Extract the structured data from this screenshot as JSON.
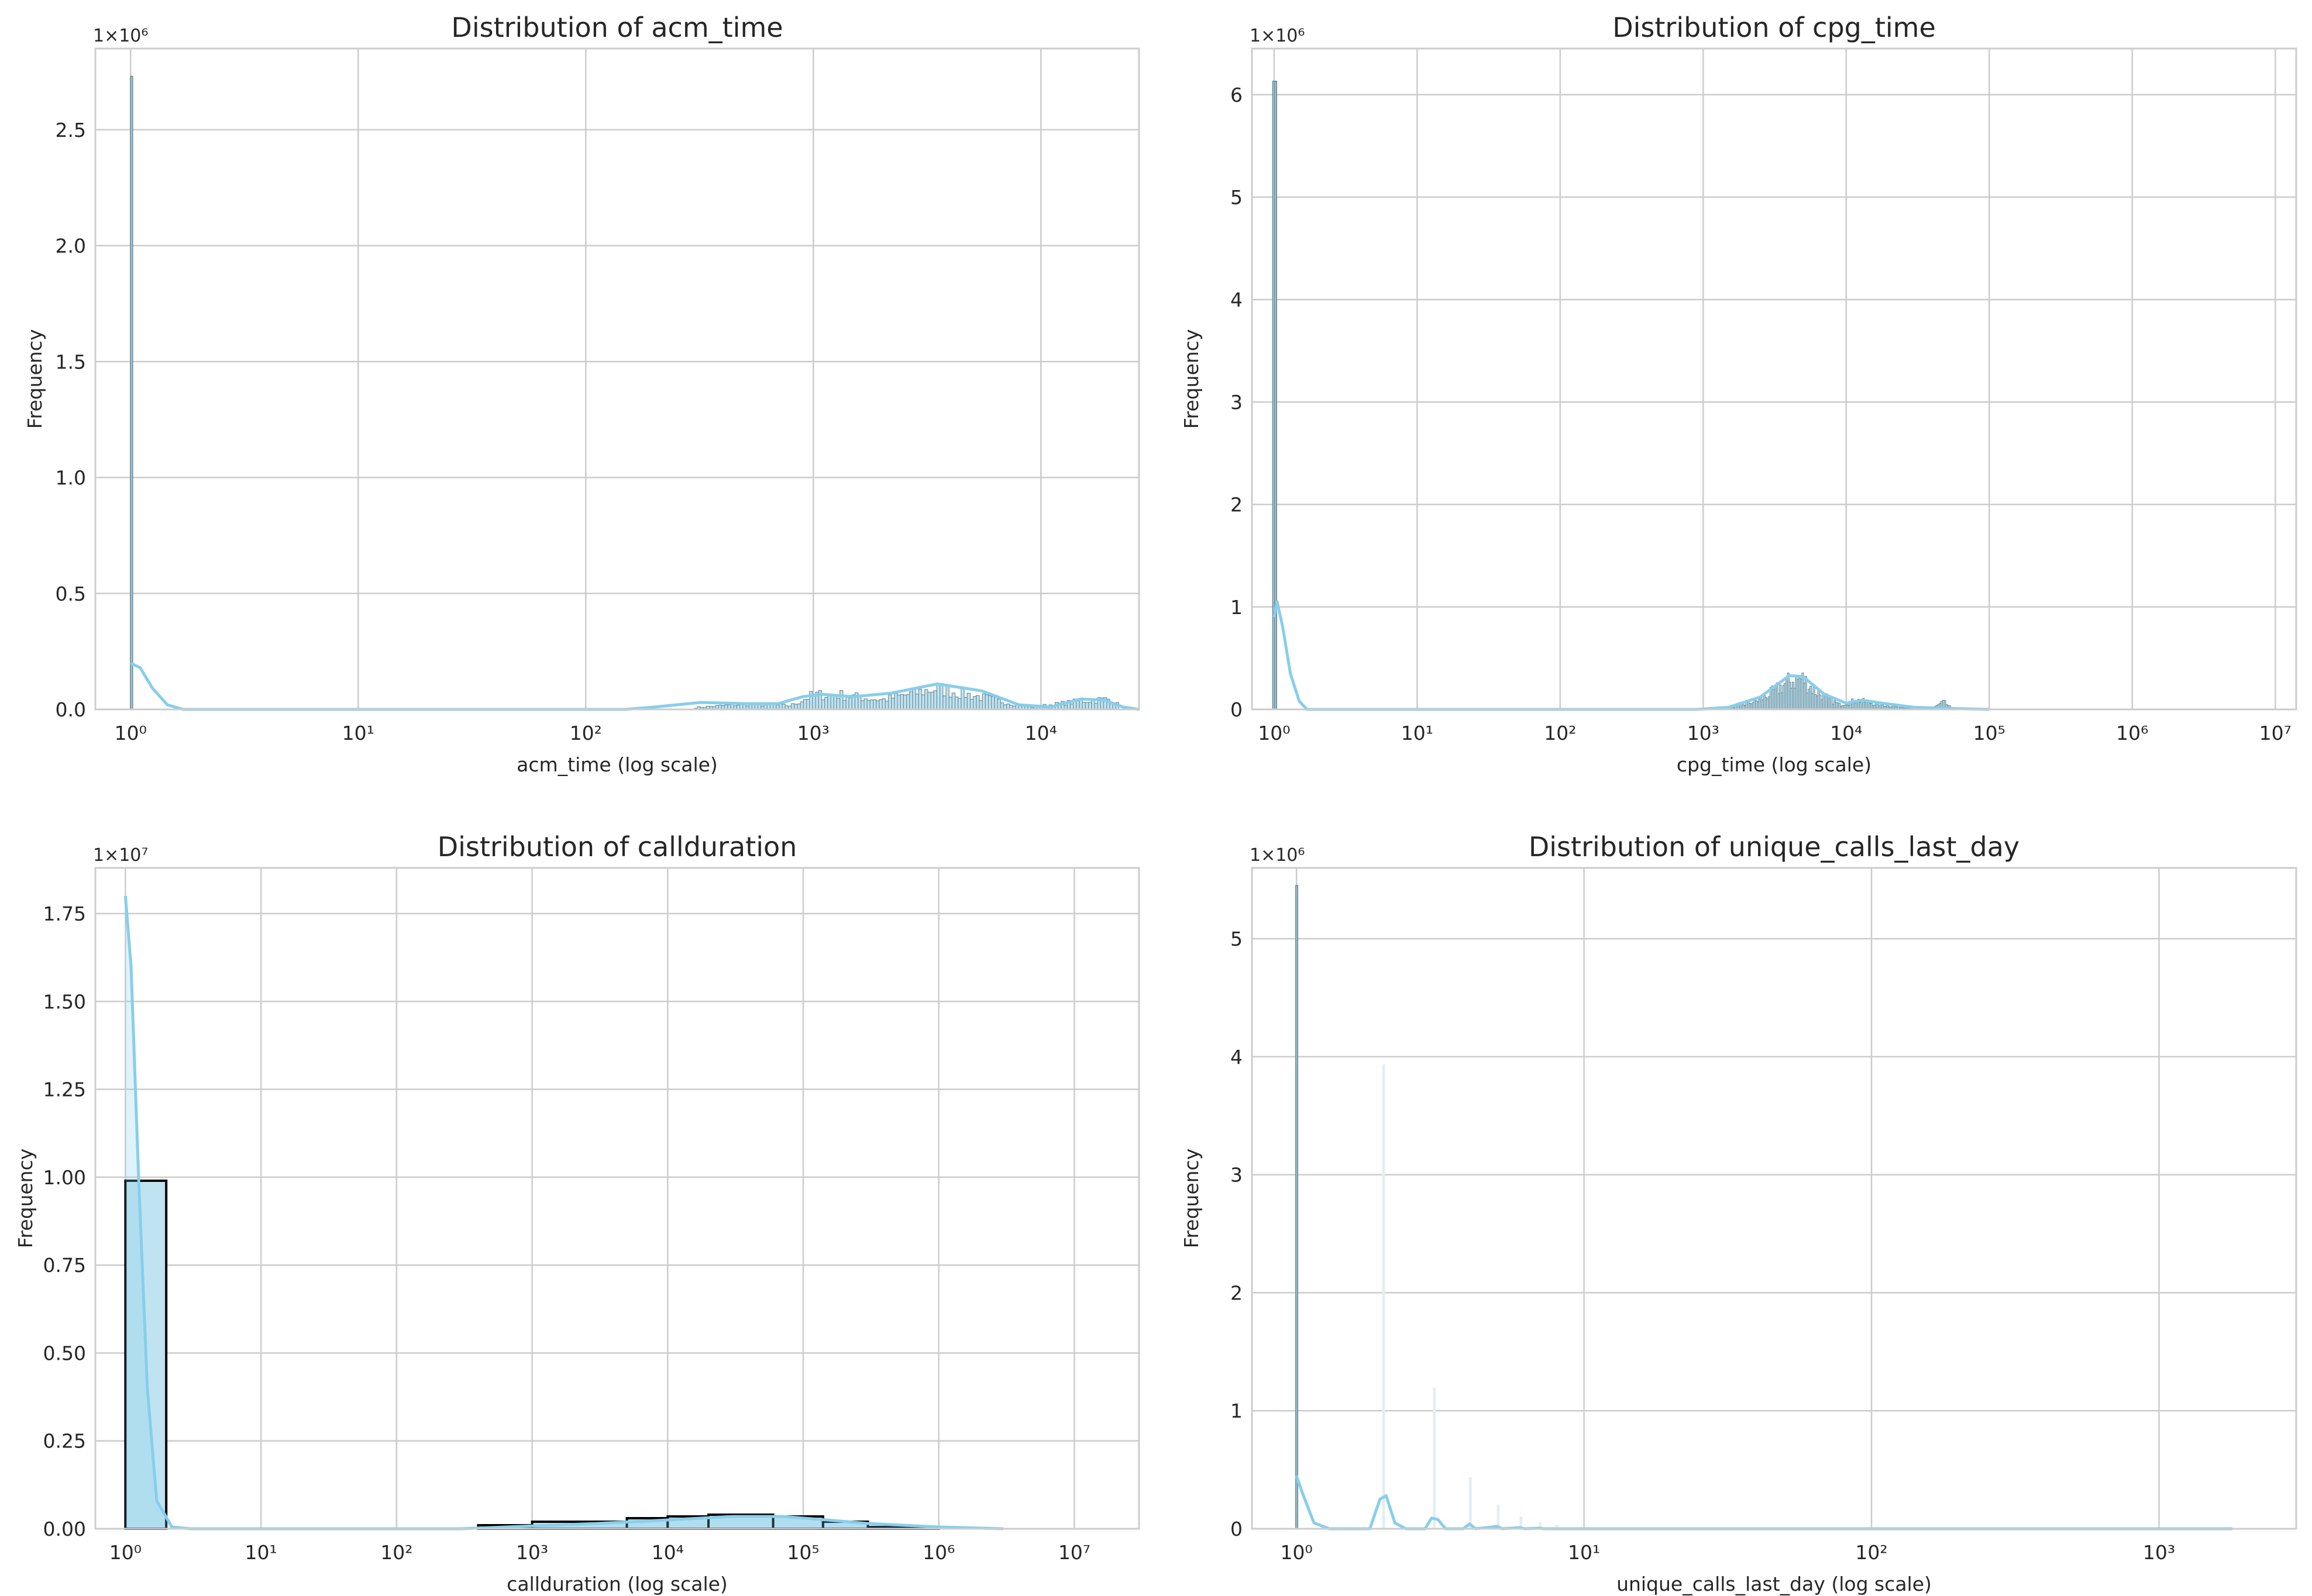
{
  "colors": {
    "series": "#87ceeb",
    "grid": "#cccccc",
    "frame": "#cccccc",
    "text": "#262626"
  },
  "chart_data": [
    {
      "type": "bar",
      "title": "Distribution of acm_time",
      "xlabel": "acm_time (log scale)",
      "ylabel": "Frequency",
      "xscale": "log",
      "xlim": [
        0.7,
        27000
      ],
      "ylim": [
        0,
        2850000
      ],
      "multiplier_label": "1×10⁶",
      "yticks": [
        0,
        500000,
        1000000,
        1500000,
        2000000,
        2500000
      ],
      "ytick_labels": [
        "0.0",
        "0.5",
        "1.0",
        "1.5",
        "2.0",
        "2.5"
      ],
      "xticks": [
        1,
        10,
        100,
        1000,
        10000
      ],
      "xtick_labels": [
        "10⁰",
        "10¹",
        "10²",
        "10³",
        "10⁴"
      ],
      "grid": true,
      "histogram": {
        "bins": [
          [
            1.0,
            1.02,
            2730000
          ]
        ],
        "range": [
          300,
          22000
        ],
        "profile": [
          [
            300,
            8000
          ],
          [
            500,
            25000
          ],
          [
            800,
            18000
          ],
          [
            1000,
            70000
          ],
          [
            1300,
            70000
          ],
          [
            2000,
            45000
          ],
          [
            3500,
            100000
          ],
          [
            6000,
            50000
          ],
          [
            9000,
            10000
          ],
          [
            15000,
            40000
          ],
          [
            20000,
            50000
          ],
          [
            22000,
            20000
          ]
        ]
      },
      "kde": [
        [
          1.0,
          200000
        ],
        [
          1.1,
          180000
        ],
        [
          1.25,
          90000
        ],
        [
          1.45,
          20000
        ],
        [
          1.7,
          0
        ],
        [
          150,
          0
        ],
        [
          200,
          10000
        ],
        [
          320,
          30000
        ],
        [
          500,
          25000
        ],
        [
          700,
          25000
        ],
        [
          900,
          55000
        ],
        [
          1100,
          65000
        ],
        [
          1500,
          55000
        ],
        [
          2200,
          70000
        ],
        [
          3500,
          110000
        ],
        [
          5500,
          80000
        ],
        [
          8000,
          20000
        ],
        [
          11000,
          10000
        ],
        [
          15000,
          45000
        ],
        [
          19000,
          40000
        ],
        [
          23000,
          10000
        ],
        [
          27000,
          0
        ]
      ]
    },
    {
      "type": "bar",
      "title": "Distribution of cpg_time",
      "xlabel": "cpg_time (log scale)",
      "ylabel": "Frequency",
      "xscale": "log",
      "xlim": [
        0.7,
        14000000
      ],
      "ylim": [
        0,
        6450000
      ],
      "multiplier_label": "1×10⁶",
      "yticks": [
        0,
        1000000,
        2000000,
        3000000,
        4000000,
        5000000,
        6000000
      ],
      "ytick_labels": [
        "0",
        "1",
        "2",
        "3",
        "4",
        "5",
        "6"
      ],
      "xticks": [
        1,
        10,
        100,
        1000,
        10000,
        100000,
        1000000,
        10000000
      ],
      "xtick_labels": [
        "10⁰",
        "10¹",
        "10²",
        "10³",
        "10⁴",
        "10⁵",
        "10⁶",
        "10⁷"
      ],
      "grid": true,
      "histogram": {
        "bins": [
          [
            0.98,
            1.01,
            6130000
          ],
          [
            1.01,
            1.04,
            6130000
          ]
        ],
        "range": [
          1500,
          60000
        ],
        "profile": [
          [
            1500,
            10000
          ],
          [
            2500,
            100000
          ],
          [
            4000,
            300000
          ],
          [
            5000,
            330000
          ],
          [
            6000,
            200000
          ],
          [
            9000,
            50000
          ],
          [
            12000,
            100000
          ],
          [
            16000,
            60000
          ],
          [
            25000,
            20000
          ],
          [
            40000,
            10000
          ],
          [
            48000,
            80000
          ],
          [
            55000,
            10000
          ]
        ]
      },
      "kde": [
        [
          1.0,
          900000
        ],
        [
          1.05,
          1050000
        ],
        [
          1.15,
          800000
        ],
        [
          1.3,
          350000
        ],
        [
          1.5,
          80000
        ],
        [
          1.7,
          0
        ],
        [
          900,
          0
        ],
        [
          1500,
          20000
        ],
        [
          2500,
          120000
        ],
        [
          4000,
          330000
        ],
        [
          5000,
          320000
        ],
        [
          7000,
          150000
        ],
        [
          10000,
          60000
        ],
        [
          13000,
          90000
        ],
        [
          18000,
          60000
        ],
        [
          30000,
          20000
        ],
        [
          50000,
          10000
        ],
        [
          100000,
          0
        ]
      ]
    },
    {
      "type": "bar",
      "title": "Distribution of callduration",
      "xlabel": "callduration (log scale)",
      "ylabel": "Frequency",
      "xscale": "log",
      "xlim": [
        0.6,
        30000000
      ],
      "ylim": [
        0,
        18800000
      ],
      "multiplier_label": "1×10⁷",
      "yticks": [
        0,
        2500000,
        5000000,
        7500000,
        10000000,
        12500000,
        15000000,
        17500000
      ],
      "ytick_labels": [
        "0.00",
        "0.25",
        "0.50",
        "0.75",
        "1.00",
        "1.25",
        "1.50",
        "1.75"
      ],
      "xticks": [
        1,
        10,
        100,
        1000,
        10000,
        100000,
        1000000,
        10000000
      ],
      "xtick_labels": [
        "10⁰",
        "10¹",
        "10²",
        "10³",
        "10⁴",
        "10⁵",
        "10⁶",
        "10⁷"
      ],
      "grid": true,
      "histogram": {
        "bins": [
          [
            1,
            2,
            9900000
          ],
          [
            400,
            1000,
            100000
          ],
          [
            1000,
            5000,
            200000
          ],
          [
            5000,
            10000,
            300000
          ],
          [
            10000,
            20000,
            350000
          ],
          [
            20000,
            60000,
            400000
          ],
          [
            60000,
            140000,
            350000
          ],
          [
            140000,
            300000,
            200000
          ],
          [
            300000,
            1000000,
            50000
          ]
        ],
        "range": [
          400,
          1000000
        ],
        "profile": []
      },
      "kde": [
        [
          1.0,
          18000000
        ],
        [
          1.1,
          16000000
        ],
        [
          1.25,
          10000000
        ],
        [
          1.45,
          4000000
        ],
        [
          1.7,
          800000
        ],
        [
          2.2,
          50000
        ],
        [
          3,
          0
        ],
        [
          300,
          0
        ],
        [
          1000,
          80000
        ],
        [
          3000,
          150000
        ],
        [
          10000,
          250000
        ],
        [
          30000,
          350000
        ],
        [
          70000,
          350000
        ],
        [
          150000,
          250000
        ],
        [
          300000,
          150000
        ],
        [
          1000000,
          50000
        ],
        [
          3000000,
          0
        ]
      ]
    },
    {
      "type": "bar",
      "title": "Distribution of unique_calls_last_day",
      "xlabel": "unique_calls_last_day (log scale)",
      "ylabel": "Frequency",
      "xscale": "log",
      "xlim": [
        0.7,
        3000
      ],
      "ylim": [
        0,
        5600000
      ],
      "multiplier_label": "1×10⁶",
      "yticks": [
        0,
        1000000,
        2000000,
        3000000,
        4000000,
        5000000
      ],
      "ytick_labels": [
        "0",
        "1",
        "2",
        "3",
        "4",
        "5"
      ],
      "xticks": [
        1,
        10,
        100,
        1000
      ],
      "xtick_labels": [
        "10⁰",
        "10¹",
        "10²",
        "10³"
      ],
      "grid": true,
      "histogram": {
        "bins": [
          [
            0.995,
            1.005,
            5450000
          ],
          [
            1.995,
            2.005,
            3930000
          ],
          [
            2.995,
            3.005,
            1190000
          ],
          [
            3.995,
            4.005,
            430000
          ],
          [
            4.995,
            5.005,
            200000
          ],
          [
            5.995,
            6.005,
            100000
          ],
          [
            6.995,
            7.005,
            50000
          ],
          [
            7.995,
            8.005,
            30000
          ]
        ],
        "range": [
          1,
          10
        ],
        "profile": []
      },
      "kde": [
        [
          1.0,
          450000
        ],
        [
          1.05,
          300000
        ],
        [
          1.15,
          50000
        ],
        [
          1.3,
          0
        ],
        [
          1.8,
          0
        ],
        [
          1.95,
          250000
        ],
        [
          2.05,
          280000
        ],
        [
          2.2,
          50000
        ],
        [
          2.4,
          0
        ],
        [
          2.8,
          0
        ],
        [
          2.95,
          90000
        ],
        [
          3.1,
          80000
        ],
        [
          3.3,
          0
        ],
        [
          3.8,
          0
        ],
        [
          4.0,
          40000
        ],
        [
          4.2,
          0
        ],
        [
          5.0,
          20000
        ],
        [
          5.2,
          0
        ],
        [
          6.0,
          10000
        ],
        [
          6.2,
          0
        ],
        [
          7.0,
          5000
        ],
        [
          7.2,
          0
        ],
        [
          10,
          0
        ],
        [
          1800,
          0
        ]
      ]
    }
  ]
}
